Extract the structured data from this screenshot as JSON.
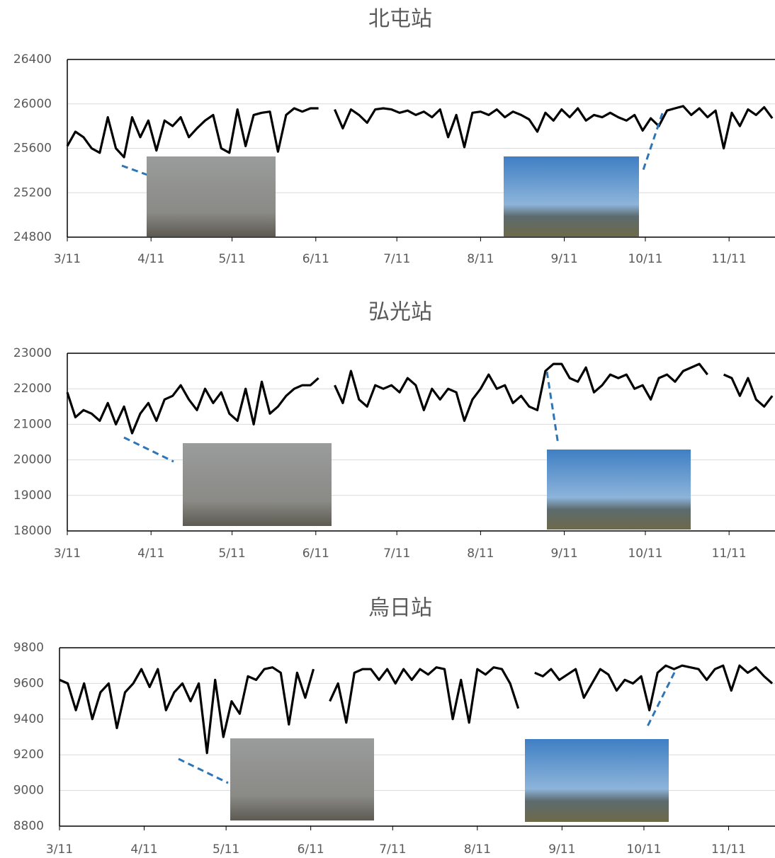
{
  "chart_data": [
    {
      "type": "line",
      "title": "北屯站",
      "color": "#000000",
      "grid": true,
      "xlim": [
        0,
        262
      ],
      "xticks": [
        {
          "value": 0,
          "label": "3/11"
        },
        {
          "value": 31,
          "label": "4/11"
        },
        {
          "value": 61,
          "label": "5/11"
        },
        {
          "value": 92,
          "label": "6/11"
        },
        {
          "value": 122,
          "label": "7/11"
        },
        {
          "value": 153,
          "label": "8/11"
        },
        {
          "value": 184,
          "label": "9/11"
        },
        {
          "value": 214,
          "label": "10/11"
        },
        {
          "value": 245,
          "label": "11/11"
        }
      ],
      "ylim": [
        24800,
        26400
      ],
      "yticks": [
        24800,
        25200,
        25600,
        26000,
        26400
      ],
      "x": [
        0,
        3,
        6,
        9,
        12,
        15,
        18,
        21,
        24,
        27,
        30,
        33,
        36,
        39,
        42,
        45,
        48,
        51,
        54,
        57,
        60,
        63,
        66,
        69,
        72,
        75,
        78,
        81,
        84,
        87,
        90,
        93,
        96,
        99,
        102,
        105,
        108,
        111,
        114,
        117,
        120,
        123,
        126,
        129,
        132,
        135,
        138,
        141,
        144,
        147,
        150,
        153,
        156,
        159,
        162,
        165,
        168,
        171,
        174,
        177,
        180,
        183,
        186,
        189,
        192,
        195,
        198,
        201,
        204,
        207,
        210,
        213,
        216,
        219,
        222,
        225,
        228,
        231,
        234,
        237,
        240,
        243,
        246,
        249,
        252,
        255,
        258,
        261
      ],
      "values": [
        25620,
        25750,
        25700,
        25600,
        25560,
        25880,
        25600,
        25520,
        25880,
        25700,
        25850,
        25580,
        25850,
        25800,
        25880,
        25700,
        25780,
        25850,
        25900,
        25600,
        25560,
        25950,
        25620,
        25900,
        25920,
        25930,
        25570,
        25900,
        25960,
        25930,
        25960,
        25960,
        null,
        25950,
        25780,
        25950,
        25900,
        25830,
        25950,
        25960,
        25950,
        25920,
        25940,
        25900,
        25930,
        25880,
        25950,
        25700,
        25900,
        25610,
        25920,
        25930,
        25900,
        25950,
        25880,
        25930,
        25900,
        25860,
        25750,
        25920,
        25850,
        25950,
        25880,
        25960,
        25850,
        25900,
        25880,
        25920,
        25880,
        25850,
        25900,
        25760,
        25870,
        25800,
        25940,
        25960,
        25980,
        25900,
        25960,
        25880,
        25940,
        25600,
        25920,
        25800,
        25950,
        25900,
        25970,
        25870
      ]
    },
    {
      "type": "line",
      "title": "弘光站",
      "color": "#000000",
      "grid": true,
      "xlim": [
        0,
        262
      ],
      "xticks": [
        {
          "value": 0,
          "label": "3/11"
        },
        {
          "value": 31,
          "label": "4/11"
        },
        {
          "value": 61,
          "label": "5/11"
        },
        {
          "value": 92,
          "label": "6/11"
        },
        {
          "value": 122,
          "label": "7/11"
        },
        {
          "value": 153,
          "label": "8/11"
        },
        {
          "value": 184,
          "label": "9/11"
        },
        {
          "value": 214,
          "label": "10/11"
        },
        {
          "value": 245,
          "label": "11/11"
        }
      ],
      "ylim": [
        18000,
        23000
      ],
      "yticks": [
        18000,
        19000,
        20000,
        21000,
        22000,
        23000
      ],
      "x": [
        0,
        3,
        6,
        9,
        12,
        15,
        18,
        21,
        24,
        27,
        30,
        33,
        36,
        39,
        42,
        45,
        48,
        51,
        54,
        57,
        60,
        63,
        66,
        69,
        72,
        75,
        78,
        81,
        84,
        87,
        90,
        93,
        96,
        99,
        102,
        105,
        108,
        111,
        114,
        117,
        120,
        123,
        126,
        129,
        132,
        135,
        138,
        141,
        144,
        147,
        150,
        153,
        156,
        159,
        162,
        165,
        168,
        171,
        174,
        177,
        180,
        183,
        186,
        189,
        192,
        195,
        198,
        201,
        204,
        207,
        210,
        213,
        216,
        219,
        222,
        225,
        228,
        231,
        234,
        237,
        240,
        243,
        246,
        249,
        252,
        255,
        258,
        261
      ],
      "values": [
        21900,
        21200,
        21400,
        21300,
        21100,
        21600,
        21000,
        21500,
        20750,
        21300,
        21600,
        21100,
        21700,
        21800,
        22100,
        21700,
        21400,
        22000,
        21600,
        21900,
        21300,
        21100,
        22000,
        21000,
        22200,
        21300,
        21500,
        21800,
        22000,
        22100,
        22100,
        22300,
        null,
        22100,
        21600,
        22500,
        21700,
        21500,
        22100,
        22000,
        22100,
        21900,
        22300,
        22100,
        21400,
        22000,
        21700,
        22000,
        21900,
        21100,
        21700,
        22000,
        22400,
        22000,
        22100,
        21600,
        21800,
        21500,
        21400,
        22500,
        22700,
        22700,
        22300,
        22200,
        22600,
        21900,
        22100,
        22400,
        22300,
        22400,
        22000,
        22100,
        21700,
        22300,
        22400,
        22200,
        22500,
        22600,
        22700,
        22400,
        null,
        22400,
        22300,
        21800,
        22300,
        21700,
        21500,
        21800
      ]
    },
    {
      "type": "line",
      "title": "烏日站",
      "color": "#000000",
      "grid": true,
      "xlim": [
        0,
        262
      ],
      "xticks": [
        {
          "value": 0,
          "label": "3/11"
        },
        {
          "value": 31,
          "label": "4/11"
        },
        {
          "value": 61,
          "label": "5/11"
        },
        {
          "value": 92,
          "label": "6/11"
        },
        {
          "value": 122,
          "label": "7/11"
        },
        {
          "value": 153,
          "label": "8/11"
        },
        {
          "value": 184,
          "label": "9/11"
        },
        {
          "value": 214,
          "label": "10/11"
        },
        {
          "value": 245,
          "label": "11/11"
        }
      ],
      "ylim": [
        8800,
        9800
      ],
      "yticks": [
        8800,
        9000,
        9200,
        9400,
        9600,
        9800
      ],
      "x": [
        0,
        3,
        6,
        9,
        12,
        15,
        18,
        21,
        24,
        27,
        30,
        33,
        36,
        39,
        42,
        45,
        48,
        51,
        54,
        57,
        60,
        63,
        66,
        69,
        72,
        75,
        78,
        81,
        84,
        87,
        90,
        93,
        96,
        99,
        102,
        105,
        108,
        111,
        114,
        117,
        120,
        123,
        126,
        129,
        132,
        135,
        138,
        141,
        144,
        147,
        150,
        153,
        156,
        159,
        162,
        165,
        168,
        171,
        174,
        177,
        180,
        183,
        186,
        189,
        192,
        195,
        198,
        201,
        204,
        207,
        210,
        213,
        216,
        219,
        222,
        225,
        228,
        231,
        234,
        237,
        240,
        243,
        246,
        249,
        252,
        255,
        258,
        261
      ],
      "values": [
        9620,
        9600,
        9450,
        9600,
        9400,
        9550,
        9600,
        9350,
        9550,
        9600,
        9680,
        9580,
        9680,
        9450,
        9550,
        9600,
        9500,
        9600,
        9210,
        9620,
        9300,
        9500,
        9430,
        9640,
        9620,
        9680,
        9690,
        9660,
        9370,
        9660,
        9520,
        9680,
        null,
        9500,
        9600,
        9380,
        9660,
        9680,
        9680,
        9620,
        9680,
        9600,
        9680,
        9620,
        9680,
        9650,
        9690,
        9680,
        9400,
        9620,
        9380,
        9680,
        9650,
        9690,
        9680,
        9600,
        9460,
        null,
        9660,
        9640,
        9680,
        9620,
        9650,
        9680,
        9520,
        9600,
        9680,
        9650,
        9560,
        9620,
        9600,
        9640,
        9450,
        9660,
        9700,
        9680,
        9700,
        9690,
        9680,
        9620,
        9680,
        9700,
        9560,
        9700,
        9660,
        9690,
        9640,
        9600
      ]
    }
  ]
}
